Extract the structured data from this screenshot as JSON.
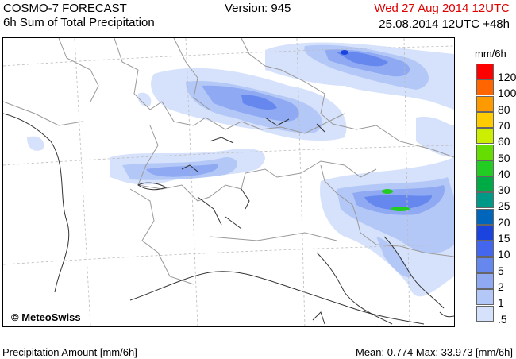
{
  "header": {
    "model_title": "COSMO-7 FORECAST",
    "product_title": "6h Sum of Total Precipitation",
    "version": "Version: 945",
    "valid_time": "Wed 27 Aug 2014 12UTC",
    "run_info": "25.08.2014 12UTC +48h"
  },
  "map": {
    "copyright": "© MeteoSwiss"
  },
  "legend": {
    "unit": "mm/6h",
    "entries": [
      {
        "label": "120",
        "color": "#ff0000"
      },
      {
        "label": "100",
        "color": "#ff6600"
      },
      {
        "label": "80",
        "color": "#ff9900"
      },
      {
        "label": "70",
        "color": "#ffcc00"
      },
      {
        "label": "60",
        "color": "#ccee00"
      },
      {
        "label": "50",
        "color": "#66dd00"
      },
      {
        "label": "40",
        "color": "#22cc22"
      },
      {
        "label": "30",
        "color": "#00aa44"
      },
      {
        "label": "25",
        "color": "#009988"
      },
      {
        "label": "20",
        "color": "#0066bb"
      },
      {
        "label": "15",
        "color": "#1a44dd"
      },
      {
        "label": "10",
        "color": "#4466ee"
      },
      {
        "label": "5",
        "color": "#6688ee"
      },
      {
        "label": "2",
        "color": "#8faaf2"
      },
      {
        "label": "1",
        "color": "#b4c8f7"
      },
      {
        "label": ".5",
        "color": "#d6e2fb"
      }
    ]
  },
  "footer": {
    "left": "Precipitation Amount [mm/6h]",
    "right": "Mean:  0.774 Max:  33.973 [mm/6h]"
  }
}
